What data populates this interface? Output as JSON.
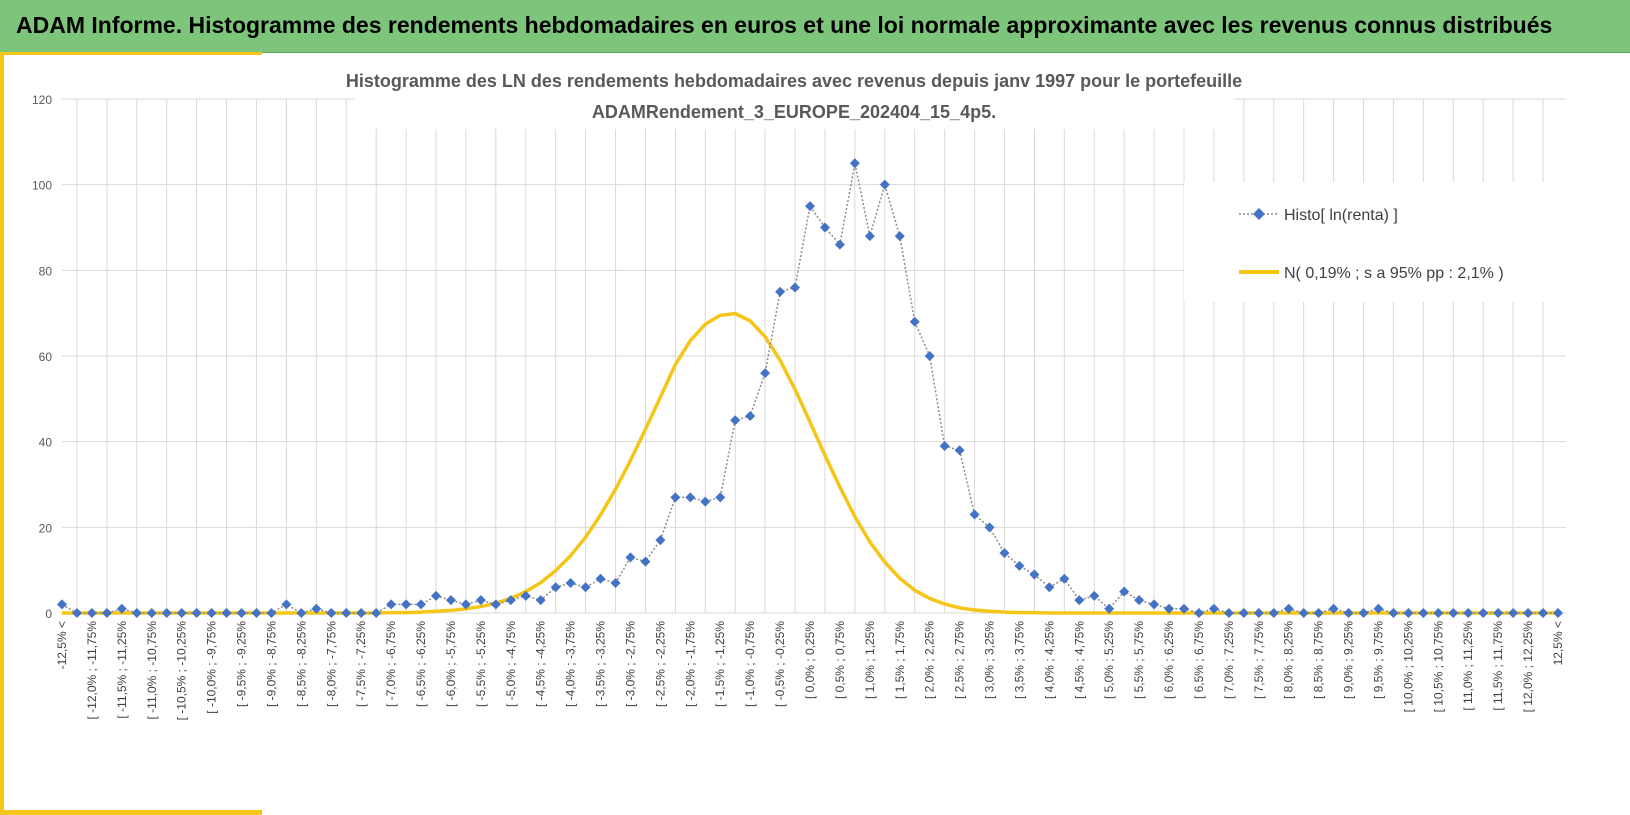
{
  "banner": {
    "title": "ADAM Informe. Histogramme des rendements hebdomadaires en euros et une loi normale approximante avec les revenus connus distribués"
  },
  "colors": {
    "banner_bg": "#7dc57a",
    "accent": "#f5c518",
    "histo_series": "#4472c4",
    "normal_series": "#f5c518",
    "grid": "#d9d9d9"
  },
  "chart_data": {
    "type": "line",
    "title_line1": "Histogramme des LN des rendements hebdomadaires avec revenus depuis janv 1997 pour le portefeuille",
    "title_line2": "ADAMRendement_3_EUROPE_202404_15_4p5.",
    "ylim": [
      0,
      120
    ],
    "yticks": [
      0,
      20,
      40,
      60,
      80,
      100,
      120
    ],
    "grid": true,
    "legend_position": "right",
    "categories": [
      "-12,5% <",
      "[ -12,25% ; -12,0%",
      "[ -12,0% ; -11,75%",
      "[ -11,75% ; -11,5%",
      "[ -11,5% ; -11,25%",
      "[ -11,25% ; -11,0%",
      "[ -11,0% ; -10,75%",
      "[ -10,75% ; -10,5%",
      "[ -10,5% ; -10,25%",
      "[ -10,25% ; -10,0%",
      "[ -10,0% ; -9,75%",
      "[ -9,75% ; -9,5%",
      "[ -9,5% ; -9,25%",
      "[ -9,25% ; -9,0%",
      "[ -9,0% ; -8,75%",
      "[ -8,75% ; -8,5%",
      "[ -8,5% ; -8,25%",
      "[ -8,25% ; -8,0%",
      "[ -8,0% ; -7,75%",
      "[ -7,75% ; -7,5%",
      "[ -7,5% ; -7,25%",
      "[ -7,25% ; -7,0%",
      "[ -7,0% ; -6,75%",
      "[ -6,75% ; -6,5%",
      "[ -6,5% ; -6,25%",
      "[ -6,25% ; -6,0%",
      "[ -6,0% ; -5,75%",
      "[ -5,75% ; -5,5%",
      "[ -5,5% ; -5,25%",
      "[ -5,25% ; -5,0%",
      "[ -5,0% ; -4,75%",
      "[ -4,75% ; -4,5%",
      "[ -4,5% ; -4,25%",
      "[ -4,25% ; -4,0%",
      "[ -4,0% ; -3,75%",
      "[ -3,75% ; -3,5%",
      "[ -3,5% ; -3,25%",
      "[ -3,25% ; -3,0%",
      "[ -3,0% ; -2,75%",
      "[ -2,75% ; -2,5%",
      "[ -2,5% ; -2,25%",
      "[ -2,25% ; -2,0%",
      "[ -2,0% ; -1,75%",
      "[ -1,75% ; -1,5%",
      "[ -1,5% ; -1,25%",
      "[ -1,25% ; -1,0%",
      "[ -1,0% ; -0,75%",
      "[ -0,75% ; -0,5%",
      "[ -0,5% ; -0,25%",
      "[ -0,25% ; 0,0%",
      "[ 0,0% ; 0,25%",
      "[ 0,25% ; 0,5%",
      "[ 0,5% ; 0,75%",
      "[ 0,75% ; 1,0%",
      "[ 1,0% ; 1,25%",
      "[ 1,25% ; 1,5%",
      "[ 1,5% ; 1,75%",
      "[ 1,75% ; 2,0%",
      "[ 2,0% ; 2,25%",
      "[ 2,25% ; 2,5%",
      "[ 2,5% ; 2,75%",
      "[ 2,75% ; 3,0%",
      "[ 3,0% ; 3,25%",
      "[ 3,25% ; 3,5%",
      "[ 3,5% ; 3,75%",
      "[ 3,75% ; 4,0%",
      "[ 4,0% ; 4,25%",
      "[ 4,25% ; 4,5%",
      "[ 4,5% ; 4,75%",
      "[ 4,75% ; 5,0%",
      "[ 5,0% ; 5,25%",
      "[ 5,25% ; 5,5%",
      "[ 5,5% ; 5,75%",
      "[ 5,75% ; 6,0%",
      "[ 6,0% ; 6,25%",
      "[ 6,25% ; 6,5%",
      "[ 6,5% ; 6,75%",
      "[ 6,75% ; 7,0%",
      "[ 7,0% ; 7,25%",
      "[ 7,25% ; 7,5%",
      "[ 7,5% ; 7,75%",
      "[ 7,75% ; 8,0%",
      "[ 8,0% ; 8,25%",
      "[ 8,25% ; 8,5%",
      "[ 8,5% ; 8,75%",
      "[ 8,75% ; 9,0%",
      "[ 9,0% ; 9,25%",
      "[ 9,25% ; 9,5%",
      "[ 9,5% ; 9,75%",
      "[ 9,75% ; 10,0%",
      "[ 10,0% ; 10,25%",
      "[ 10,25% ; 10,5%",
      "[ 10,5% ; 10,75%",
      "[ 10,75% ; 11,0%",
      "[ 11,0% ; 11,25%",
      "[ 11,25% ; 11,5%",
      "[ 11,5% ; 11,75%",
      "[ 11,75% ; 12,0%",
      "[ 12,0% ; 12,25%",
      "[ 12,25% ; 12,5%",
      "12,5% <"
    ],
    "series": [
      {
        "name": "Histo[ ln(renta) ]",
        "style": "dotted-line-diamond-markers",
        "values": [
          2,
          0,
          0,
          0,
          1,
          0,
          0,
          0,
          0,
          0,
          0,
          0,
          0,
          0,
          0,
          2,
          0,
          1,
          0,
          0,
          0,
          0,
          2,
          2,
          2,
          4,
          3,
          2,
          3,
          2,
          3,
          4,
          3,
          6,
          7,
          6,
          8,
          7,
          13,
          12,
          17,
          27,
          27,
          26,
          27,
          45,
          46,
          56,
          75,
          76,
          95,
          90,
          86,
          105,
          88,
          100,
          88,
          68,
          60,
          39,
          38,
          23,
          20,
          14,
          11,
          9,
          6,
          8,
          3,
          4,
          1,
          5,
          3,
          2,
          1,
          1,
          0,
          1,
          0,
          0,
          0,
          0,
          1,
          0,
          0,
          1,
          0,
          0,
          1,
          0,
          0,
          0,
          0,
          0,
          0,
          0,
          0,
          0,
          0,
          0,
          0
        ]
      },
      {
        "name": "N( 0,19% ; s a 95% pp : 2,1% )",
        "style": "solid-line",
        "values": [
          0.0,
          0.0,
          0.0,
          0.0,
          0.0,
          0.0,
          0.0,
          0.0,
          0.0,
          0.0,
          0.0,
          0.0,
          0.0,
          0.0,
          0.0,
          0.0,
          0.0,
          0.0,
          0.0,
          0.0,
          0.0,
          0.0,
          0.1,
          0.1,
          0.2,
          0.4,
          0.6,
          1.0,
          1.5,
          2.3,
          3.4,
          5.0,
          7.1,
          9.9,
          13.4,
          17.7,
          22.9,
          28.9,
          35.6,
          42.9,
          50.4,
          58.0,
          63.6,
          67.4,
          69.5,
          69.9,
          68.2,
          64.5,
          59.0,
          52.2,
          44.6,
          36.8,
          29.4,
          22.5,
          16.6,
          11.9,
          8.1,
          5.3,
          3.4,
          2.1,
          1.2,
          0.7,
          0.4,
          0.2,
          0.1,
          0.1,
          0.0,
          0.0,
          0.0,
          0.0,
          0.0,
          0.0,
          0.0,
          0.0,
          0.0,
          0.0,
          0.0,
          0.0,
          0.0,
          0.0,
          0.0,
          0.0,
          0.0,
          0.0,
          0.0,
          0.0,
          0.0,
          0.0,
          0.0,
          0.0,
          0.0,
          0.0,
          0.0,
          0.0,
          0.0,
          0.0,
          0.0,
          0.0,
          0.0,
          0.0,
          0.0
        ]
      }
    ]
  }
}
